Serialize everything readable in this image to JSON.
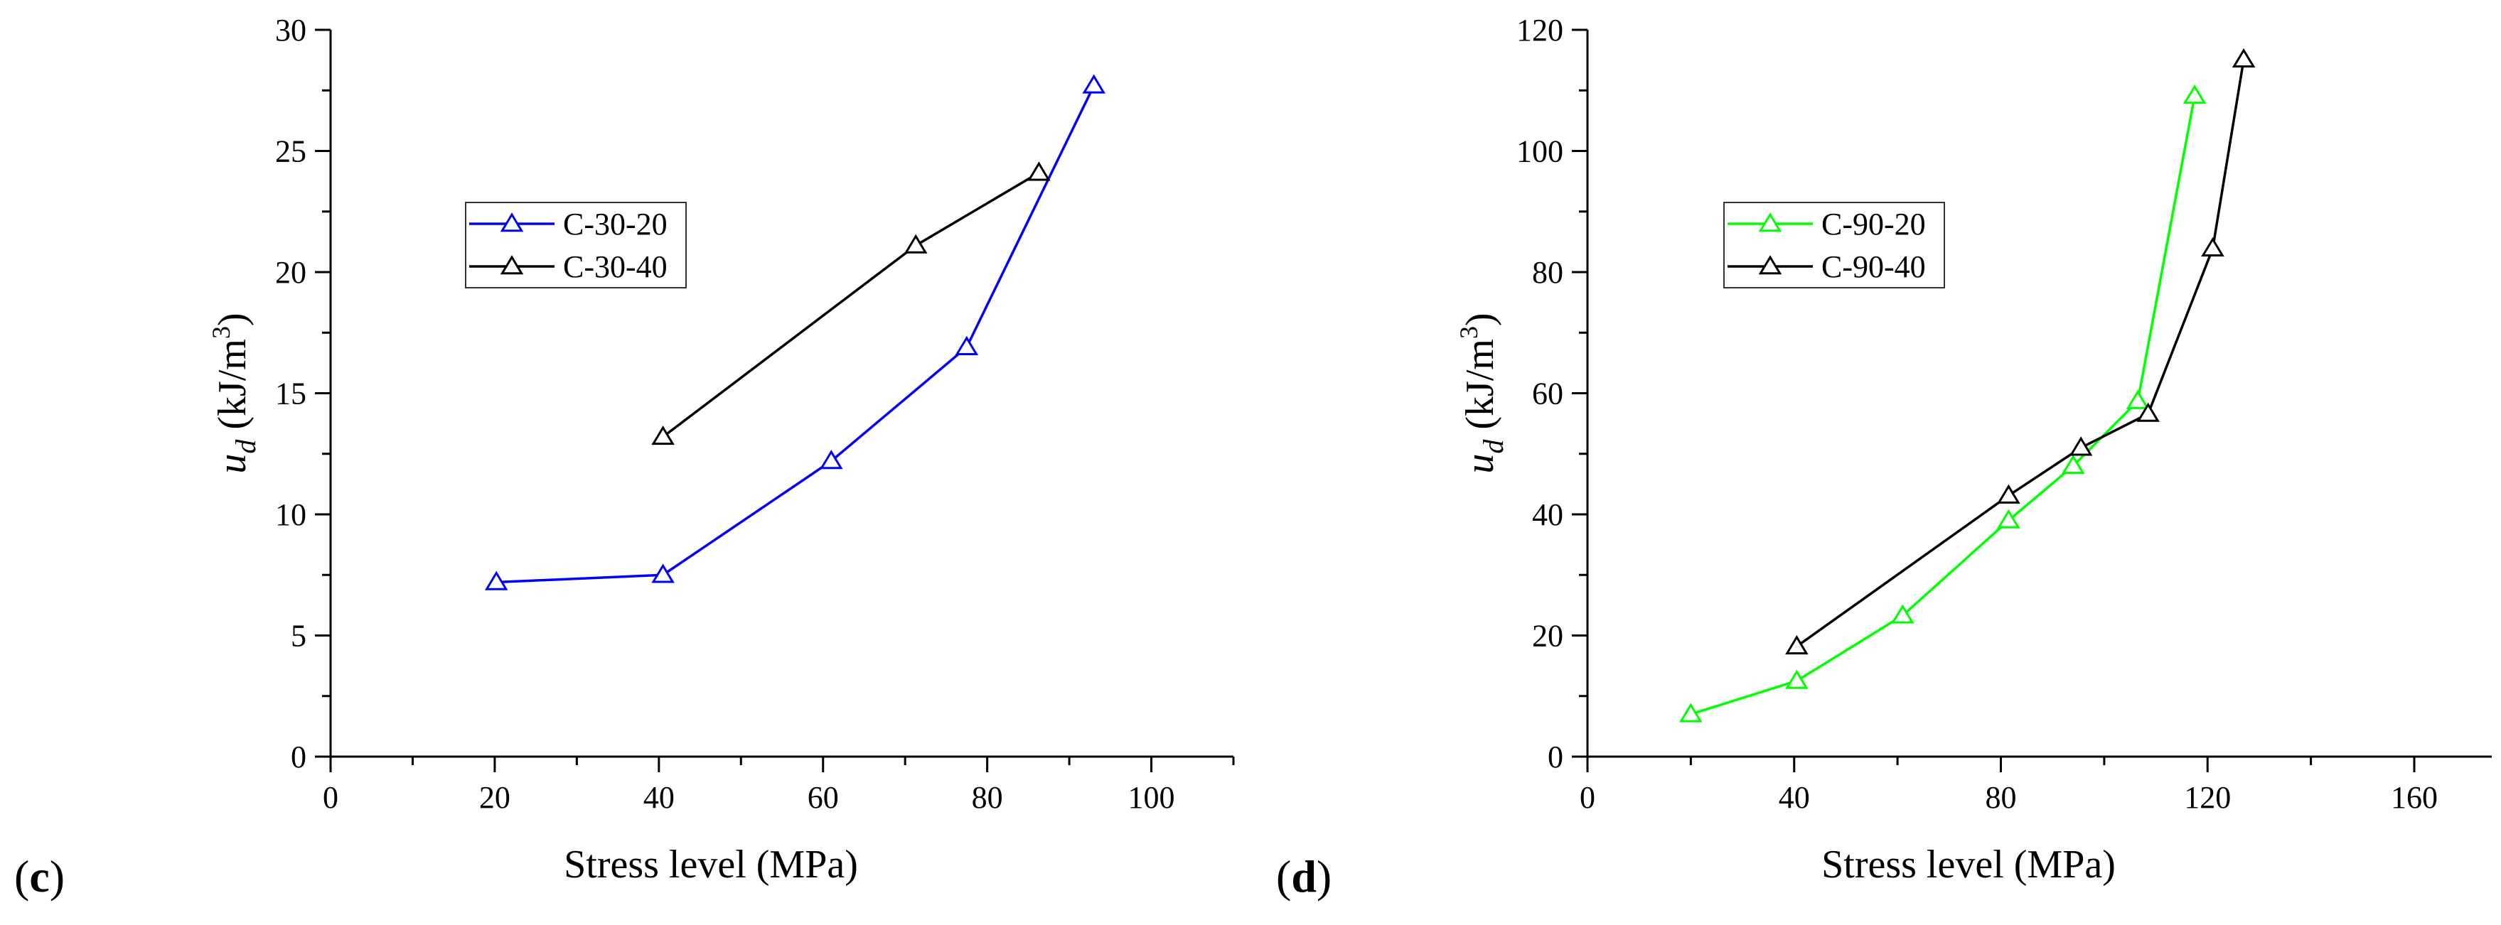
{
  "chart_data": [
    {
      "type": "line",
      "panel_label": "(c)",
      "panel_letter": "c",
      "title": "",
      "xlabel": "Stress level (MPa)",
      "ylabel_main": "u",
      "ylabel_sub": "d",
      "ylabel_unit": " (kJ/m",
      "ylabel_sup": "3",
      "ylabel_close": ")",
      "xlim": [
        0,
        110
      ],
      "ylim": [
        0,
        30
      ],
      "xticks": [
        0,
        20,
        40,
        60,
        80,
        100
      ],
      "yticks": [
        0,
        5,
        10,
        15,
        20,
        25,
        30
      ],
      "xtick_labels": [
        "0",
        "20",
        "40",
        "60",
        "80",
        "100"
      ],
      "ytick_labels": [
        "0",
        "5",
        "10",
        "15",
        "20",
        "25",
        "30"
      ],
      "legend_position": "upper-left",
      "series": [
        {
          "name": "C-30-20",
          "color": "#0000ff",
          "marker": "open-triangle",
          "x": [
            20.2,
            40.5,
            61.0,
            77.5,
            93.0
          ],
          "y": [
            7.2,
            7.5,
            12.2,
            16.9,
            27.7
          ]
        },
        {
          "name": "C-30-40",
          "color": "#000000",
          "marker": "open-triangle",
          "x": [
            40.5,
            71.3,
            86.3
          ],
          "y": [
            13.2,
            21.1,
            24.1
          ]
        }
      ]
    },
    {
      "type": "line",
      "panel_label": "(d)",
      "panel_letter": "d",
      "title": "",
      "xlabel": "Stress level (MPa)",
      "ylabel_main": "u",
      "ylabel_sub": "d",
      "ylabel_unit": " (kJ/m",
      "ylabel_sup": "3",
      "ylabel_close": ")",
      "xlim": [
        0,
        175
      ],
      "ylim": [
        0,
        120
      ],
      "xticks": [
        0,
        40,
        80,
        120,
        160
      ],
      "yticks": [
        0,
        20,
        40,
        60,
        80,
        100,
        120
      ],
      "xtick_labels": [
        "0",
        "40",
        "80",
        "120",
        "160"
      ],
      "ytick_labels": [
        "0",
        "20",
        "40",
        "60",
        "80",
        "100",
        "120"
      ],
      "legend_position": "upper-left",
      "series": [
        {
          "name": "C-90-20",
          "color": "#00ff00",
          "marker": "open-triangle",
          "x": [
            20.0,
            40.5,
            61.0,
            81.5,
            94.0,
            106.5,
            117.5
          ],
          "y": [
            7.0,
            12.5,
            23.3,
            39.0,
            48.0,
            58.7,
            109.1
          ]
        },
        {
          "name": "C-90-40",
          "color": "#000000",
          "marker": "open-triangle",
          "x": [
            40.5,
            81.5,
            95.5,
            108.5,
            121.0,
            127.0
          ],
          "y": [
            18.2,
            43.1,
            51.0,
            56.6,
            83.9,
            115.1
          ]
        }
      ]
    }
  ]
}
